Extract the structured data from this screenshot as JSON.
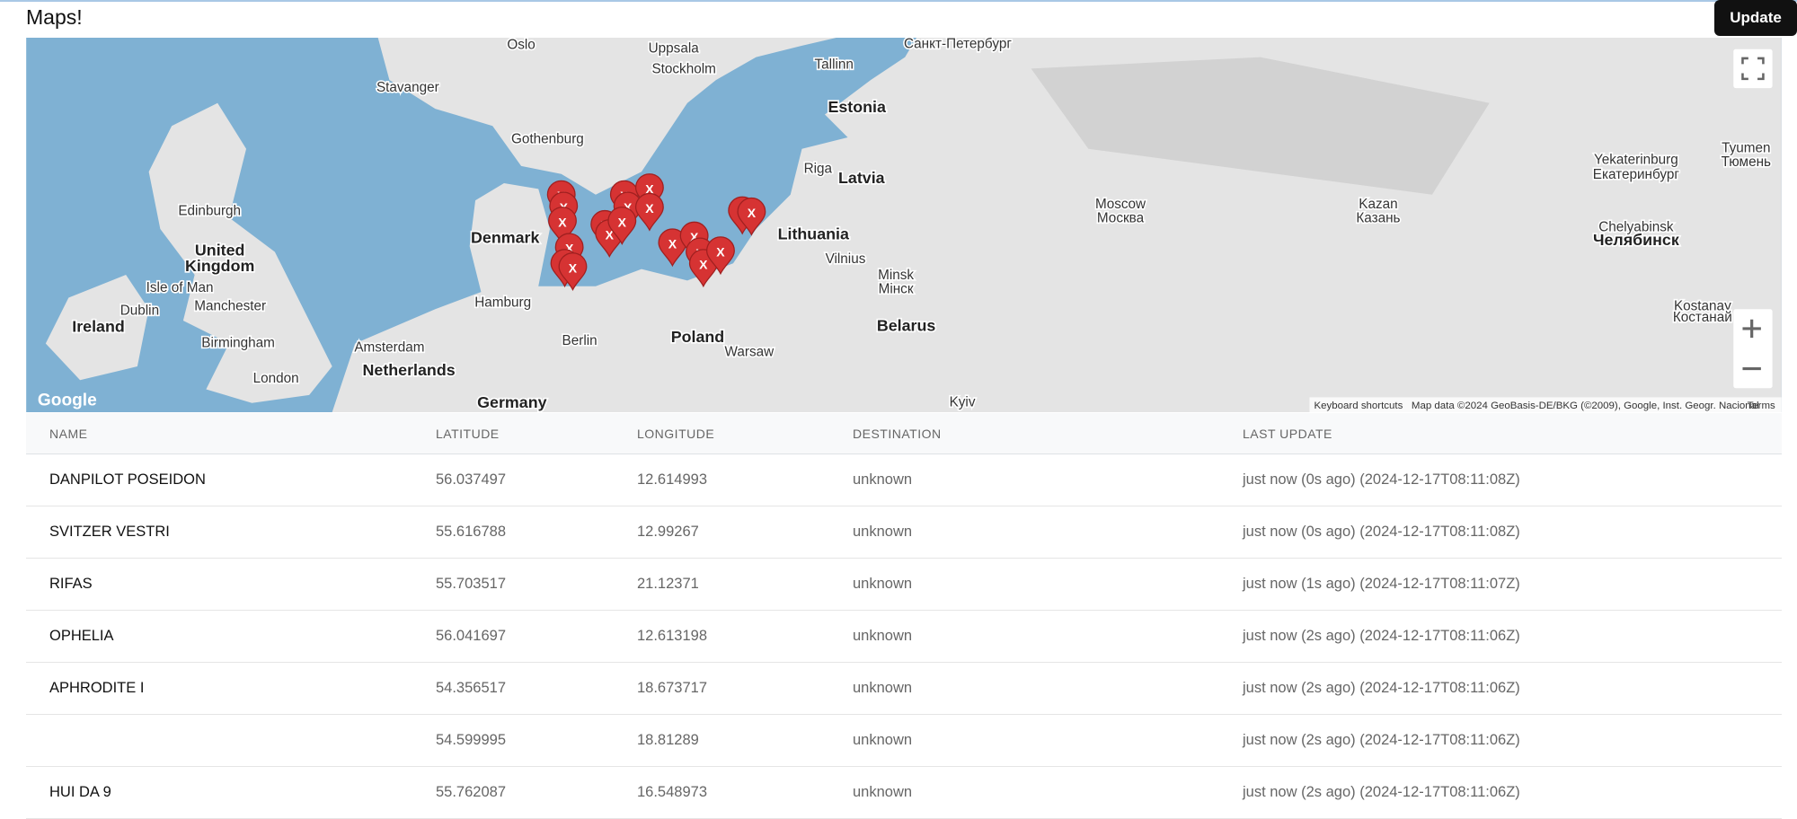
{
  "header": {
    "title": "Maps!",
    "button": "Update"
  },
  "map": {
    "marker_label": "X",
    "attribution": {
      "logo": "Google",
      "shortcuts": "Keyboard shortcuts",
      "data": "Map data ©2024 GeoBasis-DE/BKG (©2009), Google, Inst. Geogr. Nacional",
      "terms": "Terms"
    },
    "labels": [
      "Oslo",
      "Uppsala",
      "Stockholm",
      "Stavanger",
      "Tallinn",
      "Санкт-Петербург",
      "Estonia",
      "Gothenburg",
      "Riga",
      "Latvia",
      "Edinburgh",
      "Denmark",
      "Lithuania",
      "Moscow",
      "Москва",
      "Kazan",
      "Казань",
      "Yekaterinburg",
      "Екатеринбург",
      "Tyumen",
      "Тюмень",
      "Chelyabinsk",
      "Челябинск",
      "United",
      "Kingdom",
      "Isle of Man",
      "Dublin",
      "Manchester",
      "Ireland",
      "Hamburg",
      "Vilnius",
      "Minsk",
      "Мінск",
      "Birmingham",
      "Amsterdam",
      "Berlin",
      "Poland",
      "Warsaw",
      "Belarus",
      "Netherlands",
      "London",
      "Kostanay",
      "Костанай",
      "Germany",
      "Kyiv"
    ]
  },
  "table": {
    "columns": [
      "NAME",
      "LATITUDE",
      "LONGITUDE",
      "DESTINATION",
      "LAST UPDATE"
    ],
    "rows": [
      [
        "DANPILOT POSEIDON",
        "56.037497",
        "12.614993",
        "unknown",
        "just now (0s ago) (2024-12-17T08:11:08Z)"
      ],
      [
        "SVITZER VESTRI",
        "55.616788",
        "12.99267",
        "unknown",
        "just now (0s ago) (2024-12-17T08:11:08Z)"
      ],
      [
        "RIFAS",
        "55.703517",
        "21.12371",
        "unknown",
        "just now (1s ago) (2024-12-17T08:11:07Z)"
      ],
      [
        "OPHELIA",
        "56.041697",
        "12.613198",
        "unknown",
        "just now (2s ago) (2024-12-17T08:11:06Z)"
      ],
      [
        "APHRODITE I",
        "54.356517",
        "18.673717",
        "unknown",
        "just now (2s ago) (2024-12-17T08:11:06Z)"
      ],
      [
        null,
        "54.599995",
        "18.81289",
        "unknown",
        "just now (2s ago) (2024-12-17T08:11:06Z)"
      ],
      [
        "HUI DA 9",
        "55.762087",
        "16.548973",
        "unknown",
        "just now (2s ago) (2024-12-17T08:11:06Z)"
      ]
    ]
  }
}
